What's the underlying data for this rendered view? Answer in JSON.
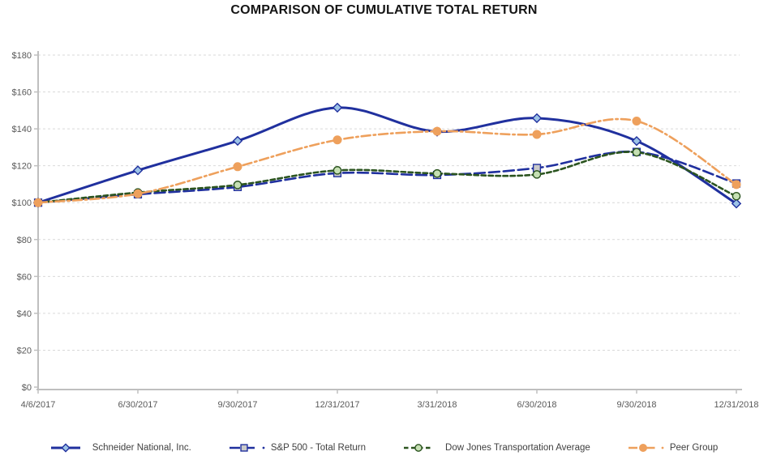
{
  "title": "COMPARISON OF CUMULATIVE TOTAL RETURN",
  "colors": {
    "navy": "#20309E",
    "dark_green": "#2B541F",
    "orange": "#EEA05C",
    "diamond_fill": "#9DC3E6",
    "square_fill": "#C9C9C9",
    "circle_fill": "#C6E0B4",
    "axis_text": "#595959",
    "legend_text": "#404040",
    "gridline": "#D9D9D9",
    "axis_line": "#BFBFBF",
    "title_text": "#151515"
  },
  "chart_data": {
    "type": "line",
    "title": "COMPARISON OF CUMULATIVE TOTAL RETURN",
    "x_labels": [
      "4/6/2017",
      "6/30/2017",
      "9/30/2017",
      "12/31/2017",
      "3/31/2018",
      "6/30/2018",
      "9/30/2018",
      "12/31/2018"
    ],
    "y_tick_labels": [
      "$0",
      "$20",
      "$40",
      "$60",
      "$80",
      "$100",
      "$120",
      "$140",
      "$160",
      "$180"
    ],
    "ylim": [
      0,
      180
    ],
    "y_step": 20,
    "grid": "horizontal-dashed",
    "legend_position": "bottom",
    "xlabel": "",
    "ylabel": "",
    "series": [
      {
        "name": "Schneider National, Inc.",
        "values": [
          100,
          117.5,
          133.5,
          151.5,
          138.5,
          145.8,
          133.4,
          99.5
        ],
        "color": "#20309E",
        "dash": "solid",
        "marker": "diamond",
        "marker_fill": "#9DC3E6",
        "legend_dot": false
      },
      {
        "name": "S&P 500 - Total Return",
        "values": [
          100,
          104.5,
          108.5,
          116,
          115,
          118.8,
          127.5,
          110.4
        ],
        "color": "#20309E",
        "dash": "long-dash",
        "marker": "square",
        "marker_fill": "#C9C9C9",
        "legend_dot": true
      },
      {
        "name": "Dow Jones Transportation Average",
        "values": [
          100,
          105.5,
          109.6,
          117.5,
          115.8,
          115.3,
          127.3,
          103.5
        ],
        "color": "#2B541F",
        "dash": "short-dash",
        "marker": "circle",
        "marker_fill": "#C6E0B4",
        "legend_dot": false
      },
      {
        "name": "Peer Group",
        "values": [
          100,
          104.8,
          119.5,
          134,
          138.7,
          137,
          144.2,
          109.8
        ],
        "color": "#EEA05C",
        "dash": "dash-dot",
        "marker": "circle-solid",
        "marker_fill": "#EEA05C",
        "legend_dot": true
      }
    ]
  }
}
